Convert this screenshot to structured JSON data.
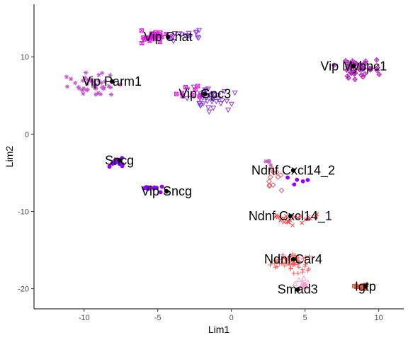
{
  "chart_data": {
    "type": "scatter",
    "xlabel": "Lim1",
    "ylabel": "Lim2",
    "xlim": [
      -13.4,
      11.7
    ],
    "ylim": [
      -22.6,
      16.8
    ],
    "xticks": [
      -10,
      -5,
      0,
      5,
      10
    ],
    "yticks": [
      -20,
      -10,
      0,
      10
    ],
    "grid": false,
    "legend": "none",
    "clusters": [
      {
        "label": "Vip Chat",
        "color": "#e60fe6",
        "shape": "square-x",
        "center": [
          -5.3,
          12.5
        ],
        "spread": [
          2.6,
          1.2
        ],
        "n": 26
      },
      {
        "label": "Vip Chat",
        "color": "#8a3be0",
        "shape": "triangle-down",
        "center": [
          -3.0,
          12.8
        ],
        "spread": [
          2.6,
          1.3
        ],
        "n": 14
      },
      {
        "label": "Vip Parm1",
        "color": "#c05ac8",
        "shape": "asterisk",
        "center": [
          -9.5,
          6.5
        ],
        "spread": [
          2.2,
          2.0
        ],
        "n": 40
      },
      {
        "label": "Vip Gpc3",
        "color": "#8a3be0",
        "shape": "triangle-down",
        "center": [
          -1.5,
          4.5
        ],
        "spread": [
          2.3,
          2.0
        ],
        "n": 40
      },
      {
        "label": "Vip Gpc3",
        "color": "#e60fe6",
        "shape": "square-x",
        "center": [
          -2.5,
          5.5
        ],
        "spread": [
          2.2,
          2.0
        ],
        "n": 8
      },
      {
        "label": "Vip Mybpc1",
        "color": "#b12ab8",
        "shape": "diamond-plus",
        "center": [
          8.5,
          8.6
        ],
        "spread": [
          2.0,
          1.6
        ],
        "n": 45
      },
      {
        "label": "Sncg",
        "color": "#8b00ff",
        "shape": "circle",
        "center": [
          -7.8,
          -3.6
        ],
        "spread": [
          0.8,
          1.0
        ],
        "n": 12
      },
      {
        "label": "Vip Sncg",
        "color": "#8b00ff",
        "shape": "circle",
        "center": [
          -5.3,
          -7.0
        ],
        "spread": [
          1.0,
          0.6
        ],
        "n": 12
      },
      {
        "label": "Ndnf Cxcl14_2",
        "color": "#c05ac8",
        "shape": "asterisk",
        "center": [
          2.5,
          -3.6
        ],
        "spread": [
          1.0,
          0.8
        ],
        "n": 4
      },
      {
        "label": "Ndnf Cxcl14_2",
        "color": "#e05a6e",
        "shape": "diamond",
        "center": [
          3.0,
          -5.5
        ],
        "spread": [
          1.2,
          2.2
        ],
        "n": 12
      },
      {
        "label": "Ndnf Cxcl14_2",
        "color": "#8b00ff",
        "shape": "circle",
        "center": [
          4.5,
          -6.2
        ],
        "spread": [
          1.8,
          1.0
        ],
        "n": 5
      },
      {
        "label": "Ndnf Cxcl14_1",
        "color": "#ff3a3a",
        "shape": "x",
        "center": [
          4.0,
          -11.0
        ],
        "spread": [
          2.2,
          1.3
        ],
        "n": 24
      },
      {
        "label": "Ndnf Car4",
        "color": "#ff5a5a",
        "shape": "plus",
        "center": [
          4.2,
          -16.6
        ],
        "spread": [
          1.8,
          2.0
        ],
        "n": 55
      },
      {
        "label": "Smad3",
        "color": "#ff9ec8",
        "shape": "triangle",
        "center": [
          4.7,
          -19.3
        ],
        "spread": [
          0.8,
          1.0
        ],
        "n": 12
      },
      {
        "label": "Igtp",
        "color": "#e05a40",
        "shape": "square-x",
        "center": [
          8.9,
          -19.8
        ],
        "spread": [
          0.7,
          0.4
        ],
        "n": 14
      }
    ],
    "labels": [
      {
        "text": "Vip Chat",
        "x": -4.3,
        "y": 12.6
      },
      {
        "text": "Vip Parm1",
        "x": -8.1,
        "y": 6.8
      },
      {
        "text": "Vip Gpc3",
        "x": -1.8,
        "y": 5.2
      },
      {
        "text": "Vip Mybpc1",
        "x": 8.3,
        "y": 8.8
      },
      {
        "text": "Sncg",
        "x": -7.6,
        "y": -3.4
      },
      {
        "text": "Vip Sncg",
        "x": -4.4,
        "y": -7.4
      },
      {
        "text": "Ndnf Cxcl14_2",
        "x": 4.2,
        "y": -4.7
      },
      {
        "text": "Ndnf Cxcl14_1",
        "x": 4.0,
        "y": -10.6
      },
      {
        "text": "Ndnf Car4",
        "x": 4.2,
        "y": -16.2
      },
      {
        "text": "Smad3",
        "x": 4.5,
        "y": -20.1
      },
      {
        "text": "Igtp",
        "x": 9.1,
        "y": -19.7
      }
    ]
  }
}
